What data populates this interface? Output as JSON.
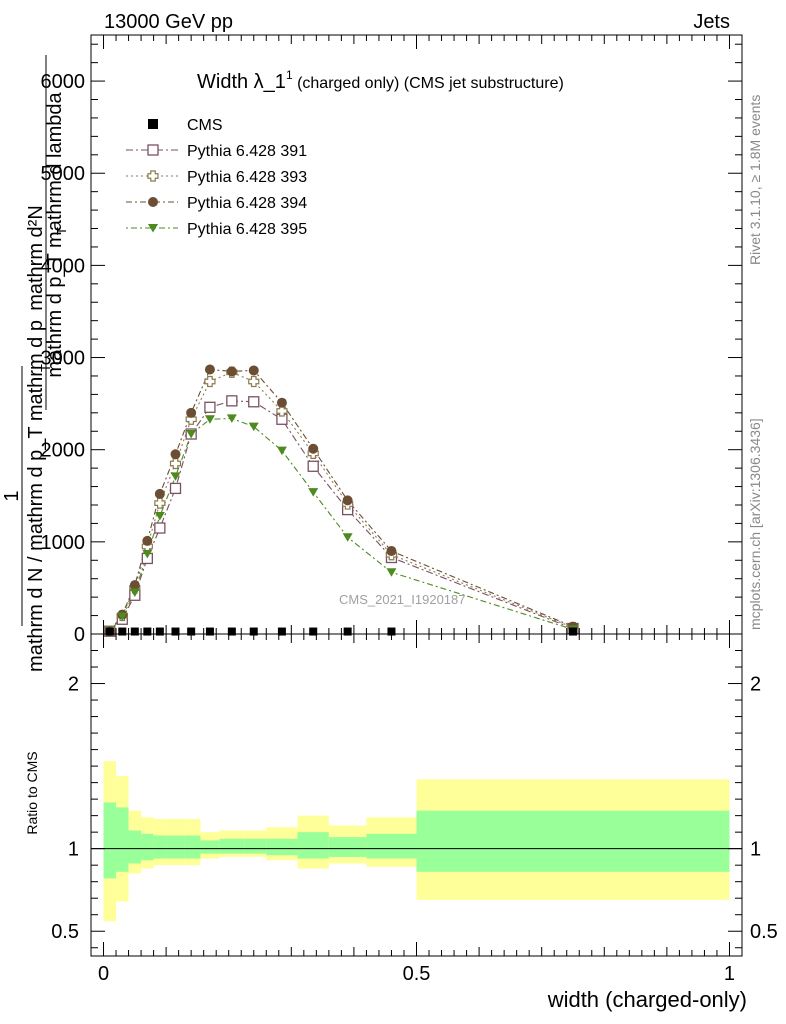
{
  "header": {
    "left": "13000 GeV pp",
    "right": "Jets"
  },
  "side_labels": {
    "rivet": "Rivet 3.1.10, ≥ 1.8M events",
    "mcplots": "mcplots.cern.ch [arXiv:1306.3436]"
  },
  "watermark": "CMS_2021_I1920187",
  "chart_data": {
    "type": "scatter",
    "title": {
      "main": "Width λ_1",
      "sup": "1",
      "rest": " (charged only) (CMS jet substructure)"
    },
    "ylabel": {
      "top_num": "mathrm d²N",
      "top_den": "mathrm d p_T mathrm d lambda",
      "top_den_sub": "T",
      "one": "1",
      "bottom_den": "mathrm d N / mathrm d p_T mathrm d p",
      "bottom_den_sub": "T"
    },
    "xlabel": "width (charged-only)",
    "xlim": [
      -0.02,
      1.02
    ],
    "ylim": [
      0,
      6500
    ],
    "y_ticks": [
      0,
      1000,
      2000,
      3000,
      4000,
      5000,
      6000
    ],
    "y_tick_labels": [
      "0",
      "1000",
      "2000",
      "3000",
      "4000",
      "5000",
      "6000"
    ],
    "legend_position": "top-left",
    "cms": {
      "name": "CMS",
      "x": [
        0.01,
        0.03,
        0.05,
        0.07,
        0.09,
        0.115,
        0.14,
        0.17,
        0.205,
        0.24,
        0.285,
        0.335,
        0.39,
        0.46,
        0.75
      ],
      "y": [
        5,
        5,
        5,
        5,
        5,
        5,
        5,
        5,
        5,
        5,
        5,
        5,
        5,
        5,
        5
      ]
    },
    "series": [
      {
        "name": "Pythia 6.428 391",
        "color": "#7a5163",
        "marker": "open-square",
        "dash": "7,3,2,3",
        "y": [
          30,
          160,
          420,
          820,
          1150,
          1580,
          2170,
          2460,
          2530,
          2520,
          2330,
          1820,
          1350,
          830,
          60
        ]
      },
      {
        "name": "Pythia 6.428 393",
        "color": "#8c7b4e",
        "marker": "open-cross",
        "dash": "2,3",
        "y": [
          30,
          200,
          500,
          950,
          1420,
          1850,
          2330,
          2740,
          2840,
          2740,
          2420,
          1960,
          1410,
          860,
          70
        ]
      },
      {
        "name": "Pythia 6.428 394",
        "color": "#6b4e34",
        "marker": "filled-circle",
        "dash": "6,3,2,3",
        "y": [
          30,
          210,
          530,
          1010,
          1520,
          1950,
          2400,
          2870,
          2850,
          2860,
          2510,
          2010,
          1450,
          900,
          80
        ]
      },
      {
        "name": "Pythia 6.428 395",
        "color": "#4d8a1f",
        "marker": "filled-triangle",
        "dash": "2,3,6,3",
        "y": [
          30,
          190,
          450,
          870,
          1280,
          1710,
          2170,
          2330,
          2340,
          2250,
          1990,
          1540,
          1050,
          670,
          50
        ]
      }
    ],
    "ratio": {
      "ylabel": "Ratio to CMS",
      "ylim": [
        0.35,
        2.3
      ],
      "y_ticks": [
        0.5,
        1,
        2
      ],
      "y_tick_labels": [
        "0.5",
        "1",
        "2"
      ],
      "x_ticks": [
        0,
        0.5,
        1
      ],
      "x_tick_labels": [
        "0",
        "0.5",
        "1"
      ],
      "bin_edges": [
        0.0,
        0.02,
        0.04,
        0.06,
        0.08,
        0.1,
        0.13,
        0.155,
        0.185,
        0.225,
        0.26,
        0.31,
        0.36,
        0.42,
        0.5,
        1.0
      ],
      "yellow_lo": [
        0.56,
        0.68,
        0.85,
        0.88,
        0.9,
        0.9,
        0.9,
        0.94,
        0.95,
        0.95,
        0.93,
        0.88,
        0.91,
        0.89,
        0.69
      ],
      "yellow_hi": [
        1.53,
        1.44,
        1.23,
        1.19,
        1.18,
        1.18,
        1.18,
        1.1,
        1.11,
        1.11,
        1.13,
        1.2,
        1.14,
        1.19,
        1.42
      ],
      "green_lo": [
        0.82,
        0.86,
        0.91,
        0.93,
        0.94,
        0.94,
        0.94,
        0.97,
        0.97,
        0.97,
        0.96,
        0.94,
        0.95,
        0.94,
        0.86
      ],
      "green_hi": [
        1.28,
        1.25,
        1.11,
        1.09,
        1.08,
        1.08,
        1.08,
        1.05,
        1.06,
        1.06,
        1.06,
        1.1,
        1.07,
        1.09,
        1.23
      ]
    },
    "colors": {
      "yellow": "#ffff99",
      "green": "#99ff99"
    }
  }
}
